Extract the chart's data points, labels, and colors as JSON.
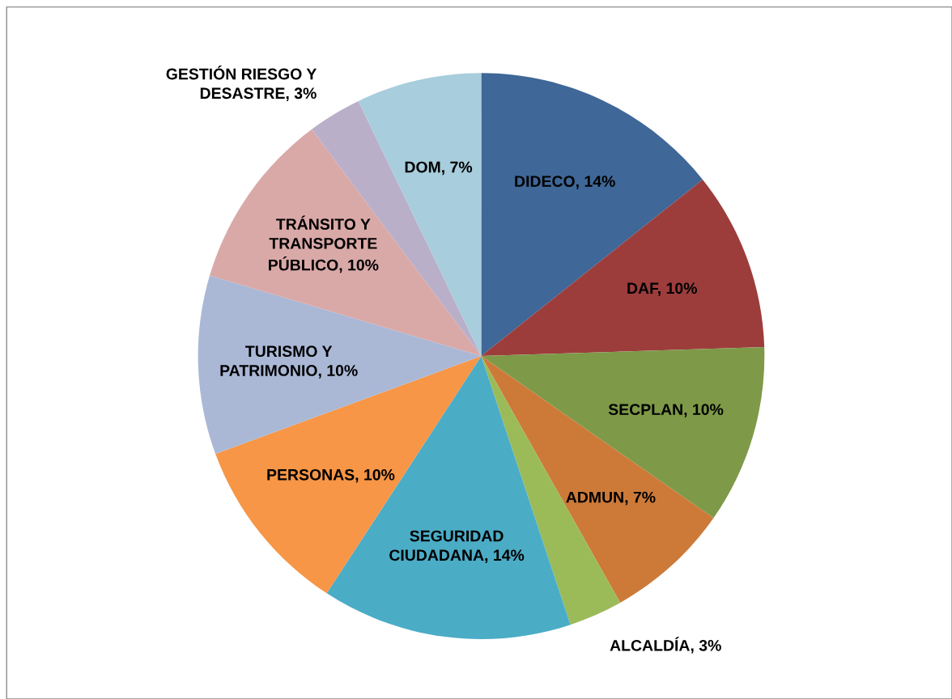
{
  "chart_data": {
    "type": "pie",
    "categories": [
      "DIDECO",
      "DAF",
      "SECPLAN",
      "ADMUN",
      "ALCALDÍA",
      "SEGURIDAD\nCIUDADANA",
      "PERSONAS",
      "TURISMO Y\nPATRIMONIO",
      "TRÁNSITO Y\nTRANSPORTE\nPÚBLICO",
      "GESTIÓN RIESGO Y\nDESASTRE",
      "DOM"
    ],
    "values": [
      14,
      10,
      10,
      7,
      3,
      14,
      10,
      10,
      10,
      3,
      7
    ],
    "value_labels": [
      "14%",
      "10%",
      "10%",
      "7%",
      "3%",
      "14%",
      "10%",
      "10%",
      "10%",
      "3%",
      "7%"
    ],
    "colors": [
      "#3f6797",
      "#9c3d3c",
      "#7e9a48",
      "#cd7a39",
      "#9bbb59",
      "#4bacc6",
      "#f79646",
      "#aab8d6",
      "#d9a9a8",
      "#b9afc9",
      "#a8cddc"
    ],
    "legend": false
  }
}
